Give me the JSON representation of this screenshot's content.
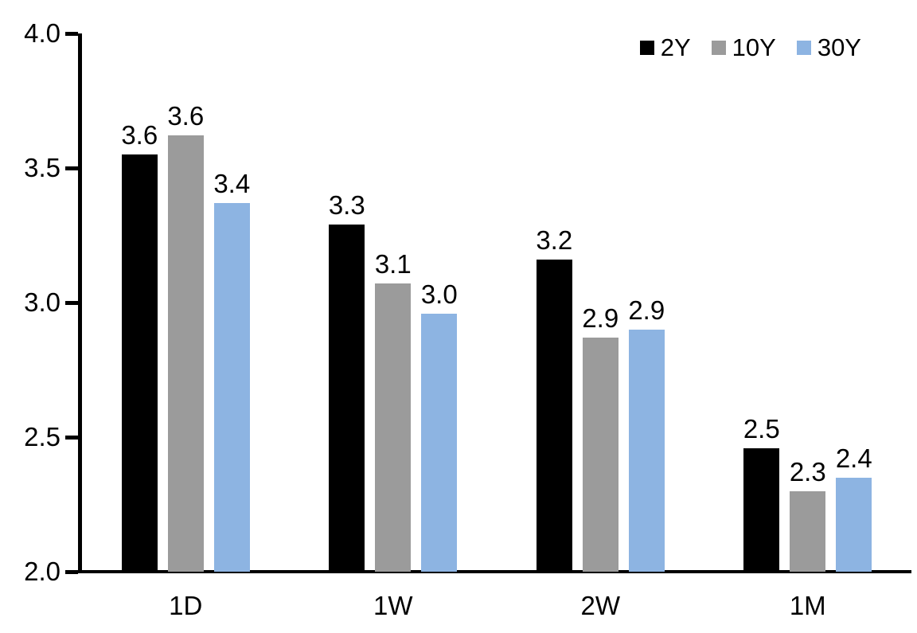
{
  "chart_data": {
    "type": "bar",
    "title": "",
    "xlabel": "",
    "ylabel": "",
    "categories": [
      "1D",
      "1W",
      "2W",
      "1M"
    ],
    "series": [
      {
        "name": "2Y",
        "color": "#000000",
        "values": [
          3.55,
          3.29,
          3.16,
          2.46
        ],
        "labels": [
          "3.6",
          "3.3",
          "3.2",
          "2.5"
        ]
      },
      {
        "name": "10Y",
        "color": "#9B9B9B",
        "values": [
          3.62,
          3.07,
          2.87,
          2.3
        ],
        "labels": [
          "3.6",
          "3.1",
          "2.9",
          "2.3"
        ]
      },
      {
        "name": "30Y",
        "color": "#8DB4E2",
        "values": [
          3.37,
          2.96,
          2.9,
          2.35
        ],
        "labels": [
          "3.4",
          "3.0",
          "2.9",
          "2.4"
        ]
      }
    ],
    "ylim": [
      2.0,
      4.0
    ],
    "ytick_values": [
      4.0,
      3.5,
      3.0,
      2.5,
      2.0
    ],
    "ytick_labels": [
      "4.0",
      "3.5",
      "3.0",
      "2.5",
      "2.0"
    ],
    "grid": false,
    "legend_position": "top-right",
    "axis_color": "#000000",
    "background_color": "#ffffff"
  }
}
